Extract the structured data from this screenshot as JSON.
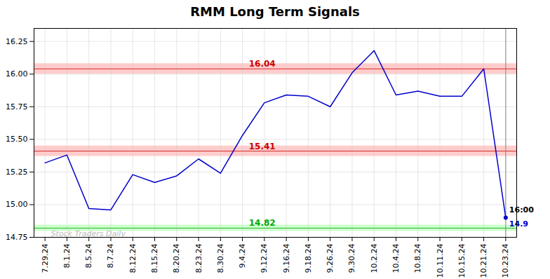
{
  "chart_data": {
    "type": "line",
    "title": "RMM Long Term Signals",
    "categories": [
      "7.29.24",
      "8.1.24",
      "8.5.24",
      "8.7.24",
      "8.12.24",
      "8.15.24",
      "8.20.24",
      "8.23.24",
      "8.30.24",
      "9.4.24",
      "9.12.24",
      "9.16.24",
      "9.18.24",
      "9.26.24",
      "9.30.24",
      "10.2.24",
      "10.4.24",
      "10.8.24",
      "10.11.24",
      "10.15.24",
      "10.21.24",
      "10.23.24"
    ],
    "values": [
      15.32,
      15.38,
      14.97,
      14.96,
      15.23,
      15.17,
      15.22,
      15.35,
      15.24,
      15.53,
      15.78,
      15.84,
      15.83,
      15.75,
      16.01,
      16.18,
      15.84,
      15.87,
      15.83,
      15.83,
      16.04,
      14.9
    ],
    "color": "#0000cc",
    "ylim": [
      14.75,
      16.35
    ],
    "yticks": [
      14.75,
      {
        "value": 15.0,
        "label": "15.00"
      },
      15.25,
      {
        "value": 15.5,
        "label": "15.50"
      },
      15.75,
      {
        "value": 16.0,
        "label": "16.00"
      },
      16.25
    ],
    "grid": true,
    "reference_lines": [
      {
        "value": 16.04,
        "label": "16.04",
        "color": "#cc0000",
        "band": [
          16.0,
          16.08
        ],
        "band_color": "#ffcccc"
      },
      {
        "value": 15.41,
        "label": "15.41",
        "color": "#cc0000",
        "band": [
          15.37,
          15.45
        ],
        "band_color": "#ffcccc"
      },
      {
        "value": 14.82,
        "label": "14.82",
        "color": "#00aa00",
        "band": [
          14.796,
          14.844
        ],
        "band_color": "#ccffcc"
      }
    ],
    "annotations": [
      {
        "text": "16:00",
        "color": "#000000"
      },
      {
        "text": "14.9",
        "color": "#0000cc"
      }
    ],
    "watermark": {
      "text": "Stock Traders Daily",
      "color": "#bbbbbb"
    }
  }
}
